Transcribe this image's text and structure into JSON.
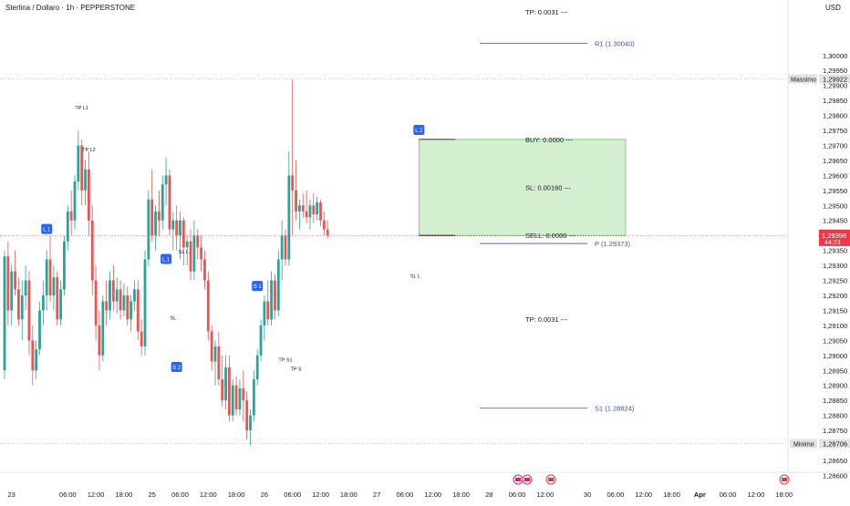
{
  "header": {
    "title": "Sterlina / Dollaro · 1h · PEPPERSTONE",
    "currency": "USD"
  },
  "colors": {
    "up": "#26a69a",
    "down": "#ef5350",
    "blue": "#2962ff",
    "pivot": "#3f51b5",
    "zone": "#d4efd0",
    "zoneBorder": "#4caf50",
    "price": "#f23645"
  },
  "chart_data": {
    "type": "candlestick",
    "symbol": "Sterlina / Dollaro",
    "timeframe": "1h",
    "ylim": [
      1.2858,
      1.3013
    ],
    "y_ticks": [
      "1,30000",
      "1,29950",
      "1,29900",
      "1,29850",
      "1,29800",
      "1,29750",
      "1,29700",
      "1,29650",
      "1,29600",
      "1,29550",
      "1,29500",
      "1,29450",
      "1,29400",
      "1,29350",
      "1,29300",
      "1,29250",
      "1,29200",
      "1,29150",
      "1,29100",
      "1,29050",
      "1,29000",
      "1,28950",
      "1,28900",
      "1,28850",
      "1,28800",
      "1,28750",
      "1,28650",
      "1,28600"
    ],
    "y_tick_values": [
      1.3,
      1.2995,
      1.299,
      1.2985,
      1.298,
      1.2975,
      1.297,
      1.2965,
      1.296,
      1.2955,
      1.295,
      1.2945,
      1.294,
      1.2935,
      1.293,
      1.2925,
      1.292,
      1.2915,
      1.291,
      1.2905,
      1.29,
      1.2895,
      1.289,
      1.2885,
      1.288,
      1.2875,
      1.2865,
      1.286
    ],
    "x_ticks": [
      "23",
      "06:00",
      "12:00",
      "18:00",
      "25",
      "06:00",
      "12:00",
      "18:00",
      "26",
      "06:00",
      "12:00",
      "18:00",
      "27",
      "06:00",
      "12:00",
      "18:00",
      "28",
      "06:00",
      "12:00",
      "30",
      "06:00",
      "12:00",
      "18:00",
      "Apr",
      "06:00",
      "12:00",
      "18:00"
    ],
    "x_tick_index": [
      2,
      18,
      26,
      34,
      42,
      50,
      58,
      66,
      74,
      82,
      90,
      98,
      106,
      114,
      122,
      130,
      138,
      146,
      154,
      166,
      174,
      182,
      190,
      198,
      206,
      214,
      222
    ],
    "candles": [
      [
        1.2895,
        1.2935,
        1.2892,
        1.2933
      ],
      [
        1.2933,
        1.2938,
        1.291,
        1.2915
      ],
      [
        1.2915,
        1.293,
        1.291,
        1.2928
      ],
      [
        1.2928,
        1.2935,
        1.292,
        1.2922
      ],
      [
        1.2922,
        1.2926,
        1.291,
        1.2912
      ],
      [
        1.2912,
        1.2925,
        1.2905,
        1.292
      ],
      [
        1.292,
        1.293,
        1.2915,
        1.2925
      ],
      [
        1.2925,
        1.2928,
        1.29,
        1.2905
      ],
      [
        1.2905,
        1.291,
        1.289,
        1.2895
      ],
      [
        1.2895,
        1.2905,
        1.2892,
        1.2902
      ],
      [
        1.2902,
        1.2918,
        1.29,
        1.2915
      ],
      [
        1.2915,
        1.2925,
        1.291,
        1.292
      ],
      [
        1.292,
        1.2935,
        1.2915,
        1.2932
      ],
      [
        1.2932,
        1.294,
        1.2918,
        1.292
      ],
      [
        1.292,
        1.293,
        1.2915,
        1.2926
      ],
      [
        1.2926,
        1.2928,
        1.291,
        1.2912
      ],
      [
        1.2912,
        1.2925,
        1.291,
        1.2922
      ],
      [
        1.2922,
        1.294,
        1.292,
        1.2938
      ],
      [
        1.2938,
        1.295,
        1.2935,
        1.2948
      ],
      [
        1.2948,
        1.2955,
        1.294,
        1.2945
      ],
      [
        1.2945,
        1.296,
        1.2942,
        1.2958
      ],
      [
        1.2958,
        1.2975,
        1.2955,
        1.297
      ],
      [
        1.297,
        1.2972,
        1.295,
        1.2955
      ],
      [
        1.2955,
        1.2965,
        1.295,
        1.2962
      ],
      [
        1.2962,
        1.2968,
        1.294,
        1.2945
      ],
      [
        1.2945,
        1.295,
        1.292,
        1.2925
      ],
      [
        1.2925,
        1.293,
        1.2905,
        1.291
      ],
      [
        1.291,
        1.2915,
        1.2895,
        1.29
      ],
      [
        1.29,
        1.292,
        1.2898,
        1.2918
      ],
      [
        1.2918,
        1.2925,
        1.291,
        1.2915
      ],
      [
        1.2915,
        1.2928,
        1.2912,
        1.2925
      ],
      [
        1.2925,
        1.293,
        1.2915,
        1.2918
      ],
      [
        1.2918,
        1.2926,
        1.2914,
        1.2922
      ],
      [
        1.2922,
        1.2925,
        1.2912,
        1.2915
      ],
      [
        1.2915,
        1.2924,
        1.2913,
        1.292
      ],
      [
        1.292,
        1.2923,
        1.291,
        1.2912
      ],
      [
        1.2912,
        1.292,
        1.2908,
        1.2918
      ],
      [
        1.2918,
        1.2925,
        1.2915,
        1.2922
      ],
      [
        1.2922,
        1.2925,
        1.2905,
        1.2908
      ],
      [
        1.2908,
        1.2912,
        1.29,
        1.2903
      ],
      [
        1.2903,
        1.2935,
        1.29,
        1.2932
      ],
      [
        1.2932,
        1.2955,
        1.293,
        1.2952
      ],
      [
        1.2952,
        1.2962,
        1.2938,
        1.294
      ],
      [
        1.294,
        1.295,
        1.2935,
        1.2948
      ],
      [
        1.2948,
        1.2955,
        1.294,
        1.2945
      ],
      [
        1.2945,
        1.296,
        1.2942,
        1.2957
      ],
      [
        1.2957,
        1.2966,
        1.295,
        1.296
      ],
      [
        1.296,
        1.2962,
        1.294,
        1.2942
      ],
      [
        1.2942,
        1.2948,
        1.2935,
        1.2945
      ],
      [
        1.2945,
        1.295,
        1.2935,
        1.294
      ],
      [
        1.294,
        1.2948,
        1.2932,
        1.2945
      ],
      [
        1.2945,
        1.2946,
        1.293,
        1.2936
      ],
      [
        1.2936,
        1.294,
        1.293,
        1.2938
      ],
      [
        1.2938,
        1.2942,
        1.2925,
        1.2928
      ],
      [
        1.2928,
        1.2945,
        1.2925,
        1.294
      ],
      [
        1.294,
        1.2942,
        1.2932,
        1.2936
      ],
      [
        1.2936,
        1.294,
        1.2928,
        1.2932
      ],
      [
        1.2932,
        1.2935,
        1.2922,
        1.2925
      ],
      [
        1.2925,
        1.2928,
        1.2905,
        1.2908
      ],
      [
        1.2908,
        1.291,
        1.2895,
        1.2898
      ],
      [
        1.2898,
        1.2905,
        1.289,
        1.2903
      ],
      [
        1.2903,
        1.2908,
        1.289,
        1.2892
      ],
      [
        1.2892,
        1.29,
        1.2883,
        1.2885
      ],
      [
        1.2885,
        1.29,
        1.2882,
        1.2896
      ],
      [
        1.2896,
        1.29,
        1.2878,
        1.288
      ],
      [
        1.288,
        1.2892,
        1.2878,
        1.289
      ],
      [
        1.289,
        1.2893,
        1.288,
        1.2882
      ],
      [
        1.2882,
        1.2892,
        1.288,
        1.2889
      ],
      [
        1.2889,
        1.2895,
        1.2878,
        1.2885
      ],
      [
        1.2885,
        1.2888,
        1.2872,
        1.2875
      ],
      [
        1.2875,
        1.2882,
        1.287,
        1.288
      ],
      [
        1.288,
        1.2895,
        1.2878,
        1.2892
      ],
      [
        1.2892,
        1.2902,
        1.289,
        1.29
      ],
      [
        1.29,
        1.2912,
        1.2898,
        1.291
      ],
      [
        1.291,
        1.292,
        1.2905,
        1.2918
      ],
      [
        1.2918,
        1.2925,
        1.291,
        1.2912
      ],
      [
        1.2912,
        1.2928,
        1.291,
        1.2925
      ],
      [
        1.2925,
        1.2927,
        1.2912,
        1.2915
      ],
      [
        1.2915,
        1.2935,
        1.2913,
        1.2932
      ],
      [
        1.2932,
        1.2945,
        1.2925,
        1.294
      ],
      [
        1.294,
        1.2942,
        1.293,
        1.2932
      ],
      [
        1.2932,
        1.2968,
        1.293,
        1.296
      ],
      [
        1.296,
        1.2992,
        1.294,
        1.2955
      ],
      [
        1.2955,
        1.2965,
        1.2945,
        1.2948
      ],
      [
        1.2948,
        1.2952,
        1.2942,
        1.295
      ],
      [
        1.295,
        1.2954,
        1.2946,
        1.2948
      ],
      [
        1.2948,
        1.2955,
        1.2944,
        1.2946
      ],
      [
        1.2946,
        1.2952,
        1.2942,
        1.295
      ],
      [
        1.295,
        1.2954,
        1.2944,
        1.2947
      ],
      [
        1.2947,
        1.2953,
        1.2945,
        1.2951
      ],
      [
        1.2951,
        1.2952,
        1.2943,
        1.2945
      ],
      [
        1.2945,
        1.2948,
        1.294,
        1.2942
      ],
      [
        1.2942,
        1.2945,
        1.2939,
        1.294
      ]
    ],
    "h_lines": [
      {
        "label": "R1 (1.30040)",
        "value": 1.3004
      },
      {
        "label": "P (1.29373)",
        "value": 1.29373
      },
      {
        "label": "S1 (1.28824)",
        "value": 1.28824
      }
    ],
    "high_label": "Massimo",
    "high_value": 1.29922,
    "high_value_text": "1,29922",
    "low_label": "Minimo",
    "low_value": 1.28706,
    "low_value_text": "1,28706",
    "current_price": 1.29398,
    "current_price_text": "1,29398",
    "countdown": "44:23",
    "position": {
      "top": 1.2972,
      "bottom": 1.294,
      "buy_label": "BUY: 0.0000 ---",
      "sl_label": "SL: 0.00160 ---",
      "sell_label": "SELL: 0.0000 ---",
      "tp_top_label": "TP: 0.0031 ---",
      "tp_bottom_label": "TP: 0.0031 ---"
    },
    "markers": [
      {
        "label": "L 1",
        "index": 12,
        "value": 1.2942
      },
      {
        "label": "L 1",
        "index": 46,
        "value": 1.2932
      },
      {
        "label": "S 1",
        "index": 72,
        "value": 1.2923
      },
      {
        "label": "S 2",
        "index": 49,
        "value": 1.2896
      },
      {
        "label": "L 2",
        "index": 118,
        "value": 1.2975
      }
    ],
    "annotations": [
      {
        "text": "TP L1",
        "index": 22,
        "value": 1.2982
      },
      {
        "text": "TP L2",
        "index": 24,
        "value": 1.2968
      },
      {
        "text": "SL L",
        "index": 51,
        "value": 1.2934
      },
      {
        "text": "SL",
        "index": 48,
        "value": 1.2912
      },
      {
        "text": "TP S1",
        "index": 80,
        "value": 1.2898
      },
      {
        "text": "TP S",
        "index": 83,
        "value": 1.2895
      },
      {
        "text": "SL L",
        "index": 117,
        "value": 1.2926
      }
    ]
  }
}
